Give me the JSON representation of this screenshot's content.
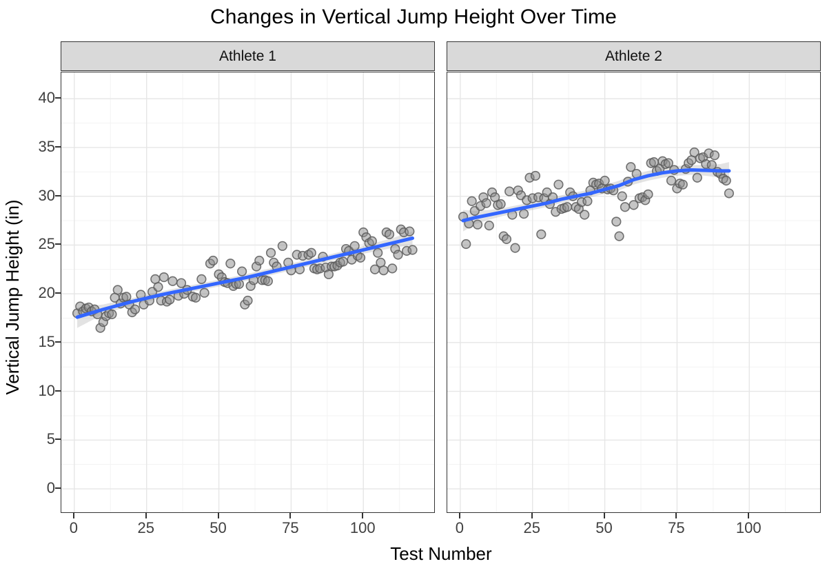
{
  "title": "Changes in Vertical Jump Height Over Time",
  "chart_data": {
    "type": "scatter",
    "title": "Changes in Vertical Jump Height Over Time",
    "xlabel": "Test Number",
    "ylabel": "Vertical Jump Height (in)",
    "legend": "none",
    "grid": "major+minor",
    "x_ticks": [
      0,
      25,
      50,
      75,
      100
    ],
    "y_ticks": [
      0,
      5,
      10,
      15,
      20,
      25,
      30,
      35,
      40
    ],
    "x_domain": [
      -4.5,
      124.5
    ],
    "y_domain": [
      -2.4,
      42.7
    ],
    "colors": {
      "point": "#8c8c8c",
      "point_stroke": "#5a5a5a",
      "smooth_line": "#3366FF",
      "ribbon": "#999999",
      "grid_major": "#e6e6e6",
      "grid_minor": "#f3f3f3",
      "strip_bg": "#d9d9d9",
      "panel_border": "#333333"
    },
    "facets": [
      {
        "label": "Athlete 1",
        "points": [
          [
            1,
            18.0
          ],
          [
            2,
            18.7
          ],
          [
            3,
            18.2
          ],
          [
            4,
            18.5
          ],
          [
            5,
            18.6
          ],
          [
            6,
            18.2
          ],
          [
            7,
            18.4
          ],
          [
            8,
            17.9
          ],
          [
            9,
            16.5
          ],
          [
            10,
            17.1
          ],
          [
            11,
            17.7
          ],
          [
            12,
            18.0
          ],
          [
            13,
            17.9
          ],
          [
            14,
            19.6
          ],
          [
            15,
            20.4
          ],
          [
            16,
            19.0
          ],
          [
            17,
            19.6
          ],
          [
            18,
            19.7
          ],
          [
            19,
            18.9
          ],
          [
            20,
            18.1
          ],
          [
            21,
            18.4
          ],
          [
            23,
            19.9
          ],
          [
            24,
            18.9
          ],
          [
            26,
            19.3
          ],
          [
            27,
            20.2
          ],
          [
            28,
            21.5
          ],
          [
            29,
            20.7
          ],
          [
            30,
            19.3
          ],
          [
            31,
            21.7
          ],
          [
            32,
            19.2
          ],
          [
            33,
            19.4
          ],
          [
            34,
            21.3
          ],
          [
            36,
            19.8
          ],
          [
            37,
            21.1
          ],
          [
            38,
            20.0
          ],
          [
            39,
            20.4
          ],
          [
            41,
            19.7
          ],
          [
            42,
            19.6
          ],
          [
            44,
            21.5
          ],
          [
            45,
            20.1
          ],
          [
            47,
            23.1
          ],
          [
            48,
            23.4
          ],
          [
            50,
            22.0
          ],
          [
            51,
            21.7
          ],
          [
            52,
            21.2
          ],
          [
            53,
            21.1
          ],
          [
            54,
            23.1
          ],
          [
            55,
            20.8
          ],
          [
            56,
            21.0
          ],
          [
            57,
            21.0
          ],
          [
            58,
            22.3
          ],
          [
            59,
            18.9
          ],
          [
            60,
            19.3
          ],
          [
            61,
            20.8
          ],
          [
            62,
            21.4
          ],
          [
            63,
            22.8
          ],
          [
            64,
            23.4
          ],
          [
            65,
            21.4
          ],
          [
            66,
            21.4
          ],
          [
            67,
            21.3
          ],
          [
            68,
            24.2
          ],
          [
            69,
            23.2
          ],
          [
            70,
            22.8
          ],
          [
            72,
            24.9
          ],
          [
            74,
            23.2
          ],
          [
            75,
            22.4
          ],
          [
            77,
            24.0
          ],
          [
            78,
            22.5
          ],
          [
            79,
            23.9
          ],
          [
            81,
            24.0
          ],
          [
            82,
            24.2
          ],
          [
            83,
            22.6
          ],
          [
            84,
            22.5
          ],
          [
            85,
            22.6
          ],
          [
            86,
            23.8
          ],
          [
            87,
            22.7
          ],
          [
            88,
            22.0
          ],
          [
            89,
            22.8
          ],
          [
            90,
            22.8
          ],
          [
            91,
            22.9
          ],
          [
            92,
            23.2
          ],
          [
            93,
            23.3
          ],
          [
            94,
            24.6
          ],
          [
            95,
            24.4
          ],
          [
            96,
            23.5
          ],
          [
            97,
            24.9
          ],
          [
            98,
            23.9
          ],
          [
            99,
            23.7
          ],
          [
            100,
            26.3
          ],
          [
            101,
            25.8
          ],
          [
            102,
            25.2
          ],
          [
            103,
            25.4
          ],
          [
            104,
            22.5
          ],
          [
            105,
            24.2
          ],
          [
            106,
            23.2
          ],
          [
            107,
            22.4
          ],
          [
            108,
            26.3
          ],
          [
            109,
            26.1
          ],
          [
            110,
            22.6
          ],
          [
            111,
            24.6
          ],
          [
            112,
            24.0
          ],
          [
            113,
            26.6
          ],
          [
            114,
            26.3
          ],
          [
            115,
            24.4
          ],
          [
            116,
            26.4
          ],
          [
            117,
            24.5
          ]
        ],
        "smooth": [
          [
            1,
            17.6
          ],
          [
            10,
            18.4
          ],
          [
            20,
            19.2
          ],
          [
            30,
            19.9
          ],
          [
            40,
            20.5
          ],
          [
            50,
            21.1
          ],
          [
            60,
            21.7
          ],
          [
            70,
            22.4
          ],
          [
            80,
            23.1
          ],
          [
            90,
            23.8
          ],
          [
            100,
            24.5
          ],
          [
            110,
            25.2
          ],
          [
            117,
            25.7
          ]
        ],
        "ribbon": [
          [
            1,
            16.5,
            18.6
          ],
          [
            10,
            17.9,
            18.9
          ],
          [
            20,
            18.85,
            19.55
          ],
          [
            30,
            19.55,
            20.25
          ],
          [
            40,
            20.15,
            20.85
          ],
          [
            50,
            20.75,
            21.45
          ],
          [
            60,
            21.35,
            22.05
          ],
          [
            70,
            22.05,
            22.75
          ],
          [
            80,
            22.75,
            23.45
          ],
          [
            90,
            23.45,
            24.15
          ],
          [
            100,
            24.1,
            24.9
          ],
          [
            110,
            24.7,
            25.7
          ],
          [
            117,
            25.0,
            26.4
          ]
        ]
      },
      {
        "label": "Athlete 2",
        "points": [
          [
            1,
            27.9
          ],
          [
            2,
            25.1
          ],
          [
            3,
            27.2
          ],
          [
            4,
            29.5
          ],
          [
            5,
            28.5
          ],
          [
            6,
            27.1
          ],
          [
            7,
            29.0
          ],
          [
            8,
            29.9
          ],
          [
            9,
            29.3
          ],
          [
            10,
            27.0
          ],
          [
            11,
            30.4
          ],
          [
            12,
            29.9
          ],
          [
            13,
            29.1
          ],
          [
            14,
            29.2
          ],
          [
            15,
            25.9
          ],
          [
            16,
            25.6
          ],
          [
            17,
            30.5
          ],
          [
            18,
            28.1
          ],
          [
            19,
            24.7
          ],
          [
            20,
            30.6
          ],
          [
            21,
            30.1
          ],
          [
            22,
            28.2
          ],
          [
            23,
            29.6
          ],
          [
            24,
            31.9
          ],
          [
            25,
            29.8
          ],
          [
            26,
            32.1
          ],
          [
            27,
            29.9
          ],
          [
            28,
            26.1
          ],
          [
            29,
            29.8
          ],
          [
            30,
            30.4
          ],
          [
            31,
            29.2
          ],
          [
            32,
            29.9
          ],
          [
            33,
            28.4
          ],
          [
            34,
            31.2
          ],
          [
            35,
            28.7
          ],
          [
            36,
            28.8
          ],
          [
            37,
            28.9
          ],
          [
            38,
            30.4
          ],
          [
            39,
            30.0
          ],
          [
            40,
            28.9
          ],
          [
            41,
            28.7
          ],
          [
            42,
            29.4
          ],
          [
            43,
            28.1
          ],
          [
            44,
            29.5
          ],
          [
            45,
            30.6
          ],
          [
            46,
            31.4
          ],
          [
            47,
            31.2
          ],
          [
            48,
            31.3
          ],
          [
            49,
            30.8
          ],
          [
            50,
            31.6
          ],
          [
            51,
            30.7
          ],
          [
            52,
            30.8
          ],
          [
            53,
            30.6
          ],
          [
            54,
            27.4
          ],
          [
            55,
            25.9
          ],
          [
            56,
            30.0
          ],
          [
            57,
            28.9
          ],
          [
            58,
            31.5
          ],
          [
            59,
            33.0
          ],
          [
            60,
            29.1
          ],
          [
            61,
            32.3
          ],
          [
            62,
            29.8
          ],
          [
            63,
            29.9
          ],
          [
            64,
            29.6
          ],
          [
            65,
            30.2
          ],
          [
            66,
            33.4
          ],
          [
            67,
            33.5
          ],
          [
            68,
            32.6
          ],
          [
            69,
            32.8
          ],
          [
            70,
            33.6
          ],
          [
            71,
            33.3
          ],
          [
            72,
            33.4
          ],
          [
            73,
            31.6
          ],
          [
            74,
            32.7
          ],
          [
            75,
            30.8
          ],
          [
            76,
            31.3
          ],
          [
            77,
            31.2
          ],
          [
            78,
            32.8
          ],
          [
            79,
            33.4
          ],
          [
            80,
            33.7
          ],
          [
            81,
            34.5
          ],
          [
            82,
            31.9
          ],
          [
            83,
            33.9
          ],
          [
            84,
            34.0
          ],
          [
            85,
            33.3
          ],
          [
            86,
            34.4
          ],
          [
            87,
            33.2
          ],
          [
            88,
            34.2
          ],
          [
            89,
            32.5
          ],
          [
            90,
            32.3
          ],
          [
            91,
            31.8
          ],
          [
            92,
            31.6
          ],
          [
            93,
            30.3
          ]
        ],
        "smooth": [
          [
            1,
            27.5
          ],
          [
            5,
            27.8
          ],
          [
            10,
            28.1
          ],
          [
            15,
            28.4
          ],
          [
            20,
            28.7
          ],
          [
            25,
            29.0
          ],
          [
            30,
            29.3
          ],
          [
            35,
            29.7
          ],
          [
            40,
            30.0
          ],
          [
            45,
            30.3
          ],
          [
            50,
            30.7
          ],
          [
            55,
            31.1
          ],
          [
            60,
            31.7
          ],
          [
            65,
            32.1
          ],
          [
            70,
            32.4
          ],
          [
            75,
            32.6
          ],
          [
            80,
            32.7
          ],
          [
            85,
            32.65
          ],
          [
            90,
            32.6
          ],
          [
            93,
            32.6
          ]
        ],
        "ribbon": [
          [
            1,
            26.4,
            28.6
          ],
          [
            5,
            27.1,
            28.5
          ],
          [
            10,
            27.6,
            28.6
          ],
          [
            15,
            28.0,
            28.8
          ],
          [
            20,
            28.3,
            29.1
          ],
          [
            25,
            28.6,
            29.4
          ],
          [
            30,
            28.9,
            29.7
          ],
          [
            35,
            29.3,
            30.1
          ],
          [
            40,
            29.6,
            30.4
          ],
          [
            45,
            29.9,
            30.7
          ],
          [
            50,
            30.25,
            31.15
          ],
          [
            55,
            30.6,
            31.6
          ],
          [
            60,
            31.2,
            32.2
          ],
          [
            65,
            31.6,
            32.6
          ],
          [
            70,
            31.9,
            32.9
          ],
          [
            75,
            32.1,
            33.1
          ],
          [
            80,
            32.2,
            33.2
          ],
          [
            85,
            32.1,
            33.2
          ],
          [
            90,
            31.9,
            33.3
          ],
          [
            93,
            31.7,
            33.5
          ]
        ]
      }
    ]
  }
}
